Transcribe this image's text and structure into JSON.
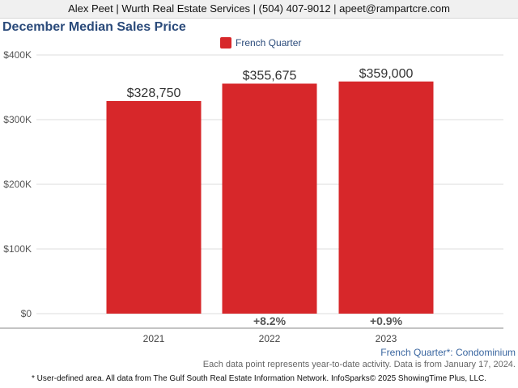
{
  "header": {
    "contact_line": "Alex Peet | Wurth Real Estate Services | (504) 407-9012 | apeet@rampartcre.com"
  },
  "colors": {
    "bar": "#d7272a",
    "title": "#2a4a7a",
    "gridline": "#dddddd",
    "axis": "#888888"
  },
  "chart_data": {
    "type": "bar",
    "title": "December Median Sales Price",
    "categories": [
      "2021",
      "2022",
      "2023"
    ],
    "series": [
      {
        "name": "French Quarter",
        "values": [
          328750,
          355675,
          359000
        ],
        "value_labels": [
          "$328,750",
          "$355,675",
          "$359,000"
        ]
      }
    ],
    "change_labels": [
      "",
      "+8.2%",
      "+0.9%"
    ],
    "y_ticks": [
      0,
      100000,
      200000,
      300000,
      400000
    ],
    "y_tick_labels": [
      "$0",
      "$100K",
      "$200K",
      "$300K",
      "$400K"
    ],
    "ylim": [
      0,
      400000
    ],
    "grid": true,
    "legend_position": "top-center"
  },
  "footer": {
    "area_label": "French Quarter*: Condominium",
    "note": "Each data point represents year-to-date activity. Data is from January 17, 2024.",
    "credit": "* User-defined area. All data from The Gulf South Real Estate Information Network. InfoSparks© 2025 ShowingTime Plus, LLC."
  }
}
